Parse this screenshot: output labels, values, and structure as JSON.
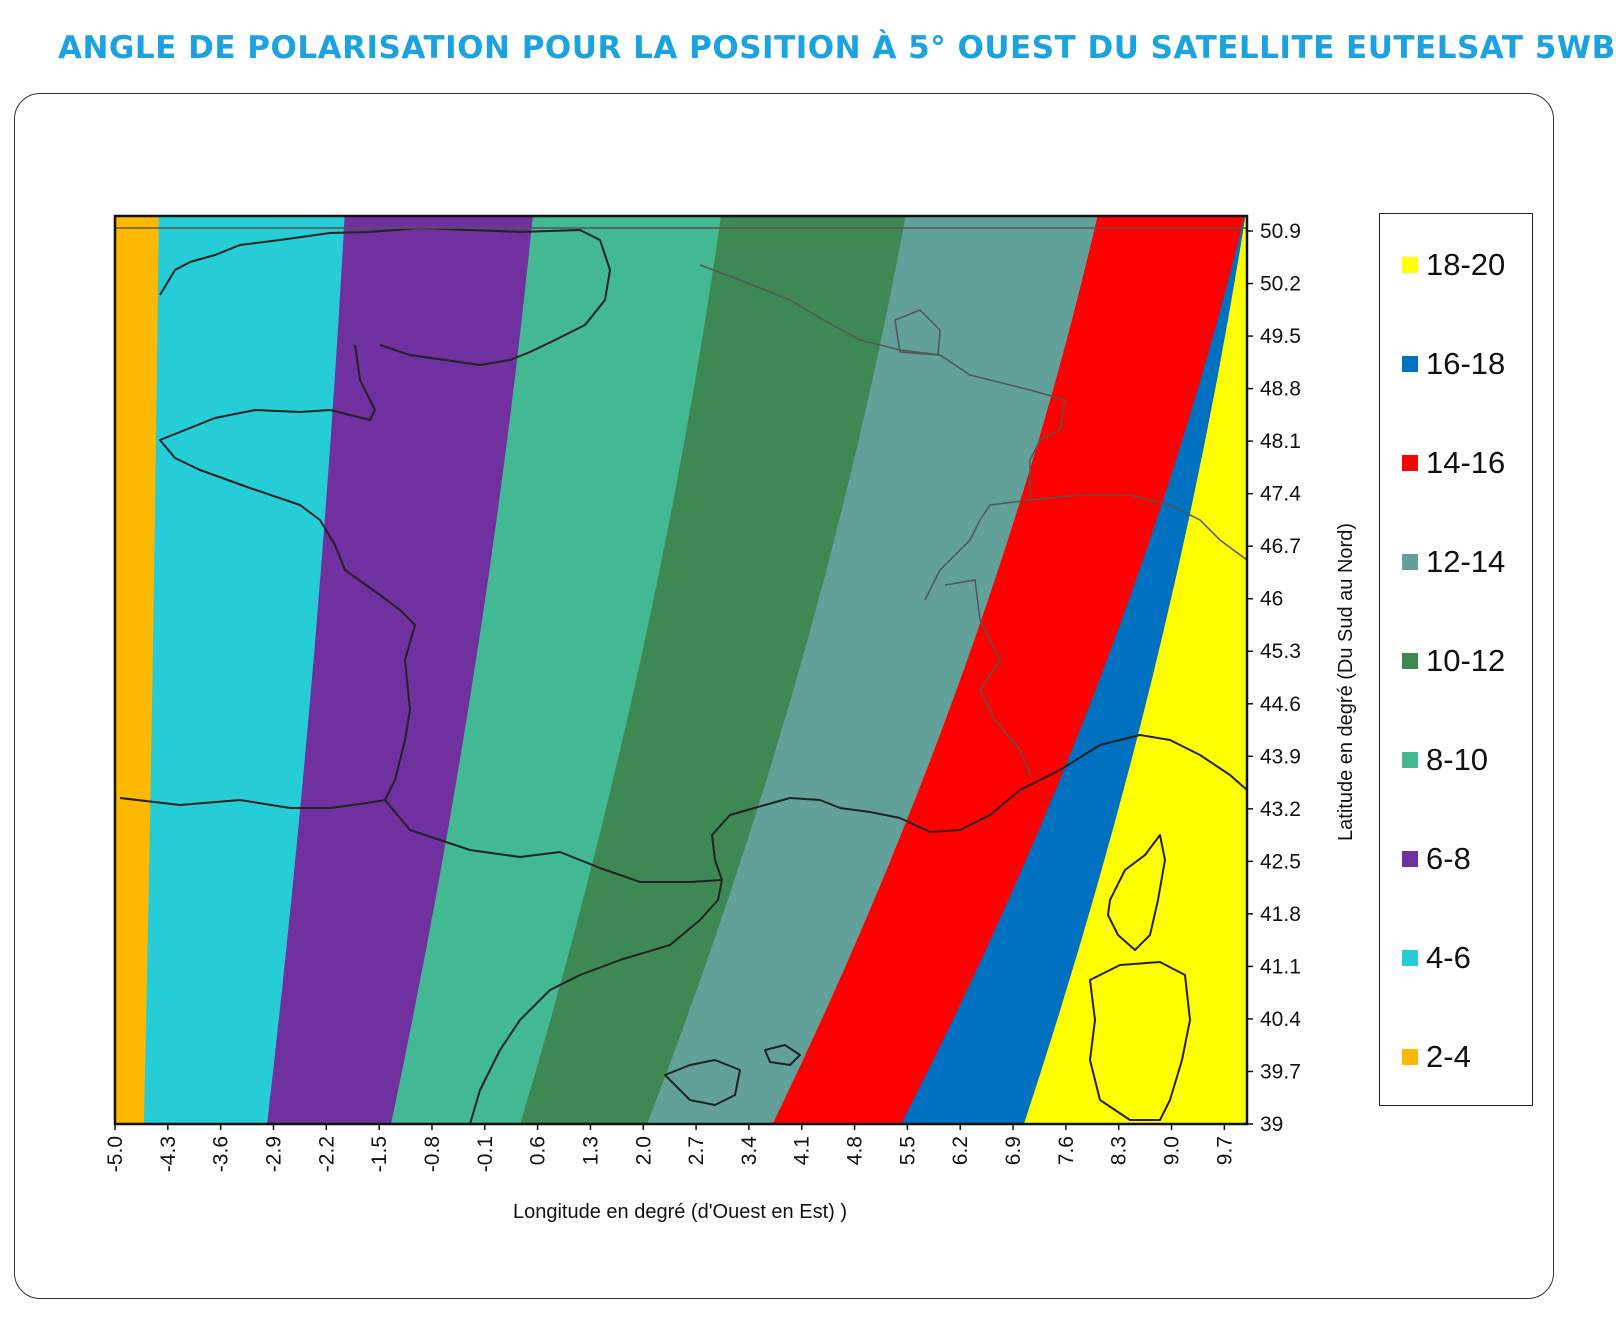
{
  "title": "ANGLE DE POLARISATION POUR LA POSITION À 5° OUEST DU SATELLITE EUTELSAT 5WB",
  "chart_data": {
    "type": "heatmap",
    "xlabel": "Longitude en degré (d'Ouest en Est) )",
    "ylabel": "Latitude en degré (Du Sud au Nord)",
    "xlim": [
      -5.0,
      10.0
    ],
    "ylim": [
      39,
      51.1
    ],
    "x_ticks": [
      "-5.0",
      "-4.3",
      "-3.6",
      "-2.9",
      "-2.2",
      "-1.5",
      "-0.8",
      "-0.1",
      "0.6",
      "1.3",
      "2.0",
      "2.7",
      "3.4",
      "4.1",
      "4.8",
      "5.5",
      "6.2",
      "6.9",
      "7.6",
      "8.3",
      "9.0",
      "9.7"
    ],
    "y_ticks": [
      "50.9",
      "50.2",
      "49.5",
      "48.8",
      "48.1",
      "47.4",
      "46.7",
      "46",
      "45.3",
      "44.6",
      "43.9",
      "43.2",
      "42.5",
      "41.8",
      "41.1",
      "40.4",
      "39.7",
      "39"
    ],
    "legend_position": "right",
    "zones": [
      {
        "label": "2-4",
        "color": "#FFB800",
        "lon_at_lat_39": -5.0,
        "lon_at_lat_51": -5.0
      },
      {
        "label": "4-6",
        "color": "#26CDD6",
        "lon_at_lat_39": -4.62,
        "lon_at_lat_51": -4.42
      },
      {
        "label": "6-8",
        "color": "#7030A0",
        "lon_at_lat_39": -3.0,
        "lon_at_lat_51": -1.95
      },
      {
        "label": "8-10",
        "color": "#42B893",
        "lon_at_lat_39": -1.37,
        "lon_at_lat_51": 0.55
      },
      {
        "label": "10-12",
        "color": "#3E8853",
        "lon_at_lat_39": 0.33,
        "lon_at_lat_51": 3.05
      },
      {
        "label": "12-14",
        "color": "#62A09A",
        "lon_at_lat_39": 2.0,
        "lon_at_lat_51": 5.5
      },
      {
        "label": "14-16",
        "color": "#FF0000",
        "lon_at_lat_39": 3.65,
        "lon_at_lat_51": 8.05
      },
      {
        "label": "16-18",
        "color": "#0070C0",
        "lon_at_lat_39": 5.35,
        "lon_at_lat_51": 10.0
      },
      {
        "label": "18-20",
        "color": "#FFFF00",
        "lon_at_lat_39": 7.0,
        "lon_at_lat_51": 10.0
      }
    ],
    "legend": [
      {
        "label": "18-20",
        "color": "#FFFF00"
      },
      {
        "label": "16-18",
        "color": "#0070C0"
      },
      {
        "label": "14-16",
        "color": "#FF0000"
      },
      {
        "label": "12-14",
        "color": "#62A09A"
      },
      {
        "label": "10-12",
        "color": "#3E8853"
      },
      {
        "label": "8-10",
        "color": "#42B893"
      },
      {
        "label": "6-8",
        "color": "#7030A0"
      },
      {
        "label": "4-6",
        "color": "#26CDD6"
      },
      {
        "label": "2-4",
        "color": "#FFB800"
      }
    ]
  }
}
